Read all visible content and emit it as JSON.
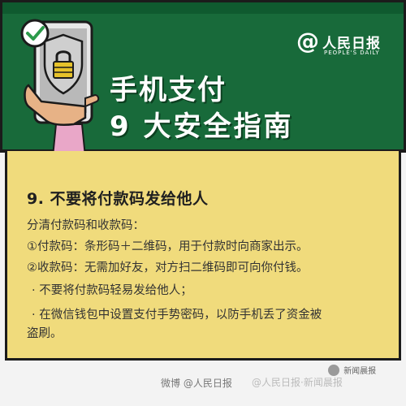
{
  "header": {
    "title_line1": "手机支付",
    "title_line2": "9 大安全指南",
    "brand": {
      "at_symbol": "@",
      "name": "人民日报",
      "english": "PEOPLE'S DAILY"
    },
    "illustration": "hand-holding-phone-with-shield-lock",
    "check_icon": "check-circle-icon",
    "colors": {
      "green": "#186a3a",
      "yellow": "#f0db7c",
      "hand": "#e7b286",
      "shield": "#9a9a9a"
    }
  },
  "content": {
    "heading": "9. 不要将付款码发给他人",
    "lines": [
      "分清付款码和收款码：",
      "①付款码：条形码＋二维码，用于付款时向商家出示。",
      "②收款码：无需加好友，对方扫二维码即可向你付钱。",
      "·  不要将付款码轻易发给他人；",
      "·  在微信钱包中设置支付手势密码，以防手机丢了资金被",
      "盗刷。"
    ]
  },
  "footer": {
    "tag": "微博 @人民日报",
    "watermark_overlay": "@人民日报·新闻晨报",
    "badge": "新闻晨报"
  }
}
